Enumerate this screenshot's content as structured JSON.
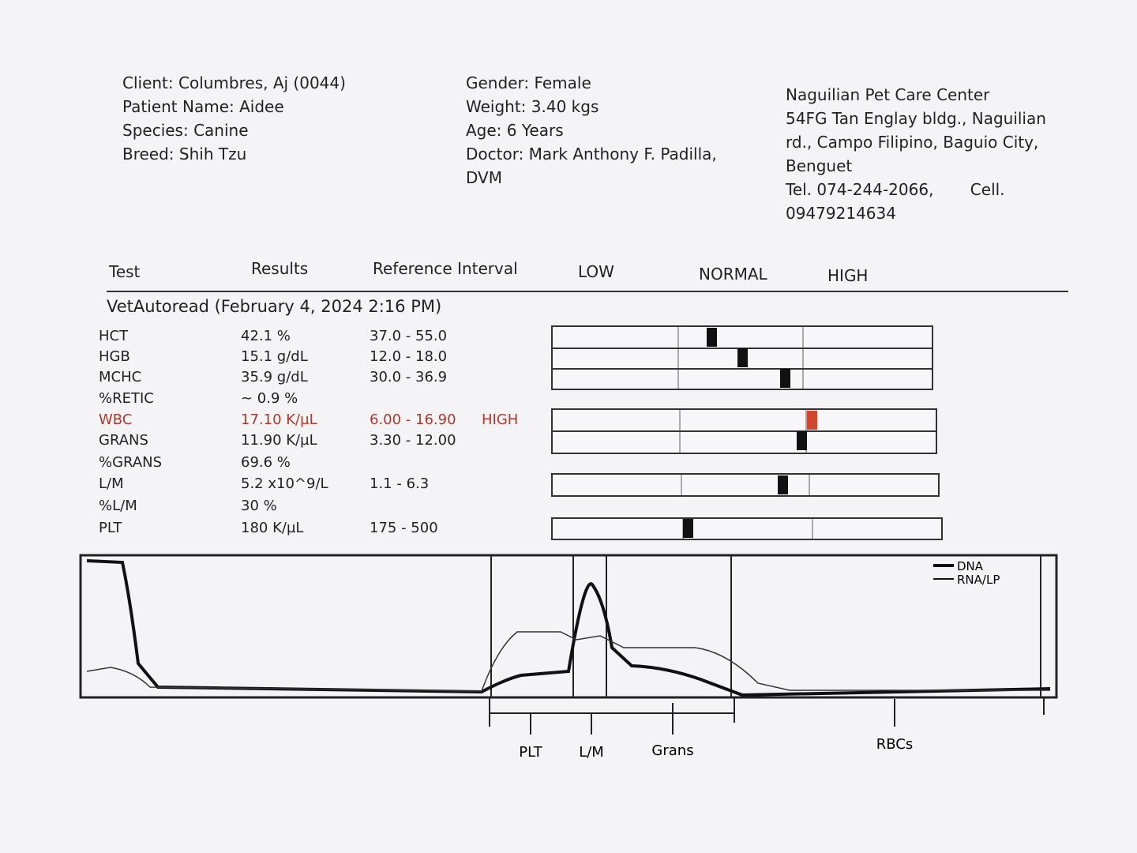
{
  "patient": {
    "client": "Client: Columbres, Aj (0044)",
    "patient_name": "Patient Name: Aidee",
    "species": "Species: Canine",
    "breed": "Breed: Shih Tzu",
    "gender": "Gender: Female",
    "weight": "Weight: 3.40 kgs",
    "age": "Age: 6 Years",
    "doctor": "Doctor: Mark Anthony F. Padilla, DVM"
  },
  "clinic": {
    "name": "Naguilian Pet Care Center",
    "address": "54FG Tan Englay bldg., Naguilian rd., Campo Filipino, Baguio City, Benguet",
    "phone": "Tel. 074-244-2066,",
    "cell": "Cell. 09479214634"
  },
  "table": {
    "headers": [
      "Test",
      "Results",
      "Reference Interval",
      "LOW",
      "NORMAL",
      "HIGH"
    ],
    "section": "VetAutoread (February 4, 2024 2:16 PM)",
    "rows": [
      {
        "test": "HCT",
        "result": "42.1 %",
        "range": "37.0 - 55.0"
      },
      {
        "test": "HGB",
        "result": "15.1 g/dL",
        "range": "12.0 - 18.0"
      },
      {
        "test": "MCHC",
        "result": "35.9 g/dL",
        "range": "30.0 - 36.9"
      },
      {
        "test": "%RETIC",
        "result": "~ 0.9 %"
      },
      {
        "test": "WBC",
        "result": "17.10 K/µL",
        "range": "6.00 - 16.90",
        "flag": "HIGH"
      },
      {
        "test": "GRANS",
        "result": "11.90 K/µL",
        "range": "3.30 - 12.00"
      },
      {
        "test": "%GRANS",
        "result": "69.6 %"
      },
      {
        "test": "L/M",
        "result": "5.2 x10^9/L",
        "range": "1.1 - 6.3"
      },
      {
        "test": "%L/M",
        "result": "30 %"
      },
      {
        "test": "PLT",
        "result": "180 K/µL",
        "range": "175 - 500"
      }
    ]
  },
  "histogram": {
    "legend": [
      "DNA",
      "RNA/LP"
    ],
    "labels": [
      "PLT",
      "L/M",
      "Grans",
      "RBCs"
    ]
  }
}
